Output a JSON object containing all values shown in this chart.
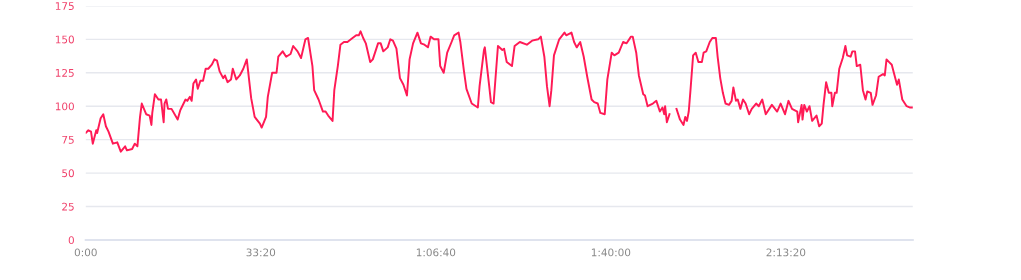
{
  "chart_data": {
    "type": "line",
    "color": "#ff1a55",
    "grid": "y",
    "marker": "none",
    "line_style": "solid",
    "xlim": [
      0,
      9450
    ],
    "ylim": [
      0,
      175
    ],
    "xticks": [
      {
        "value": 0,
        "label": "0:00"
      },
      {
        "value": 2000,
        "label": "33:20"
      },
      {
        "value": 4000,
        "label": "1:06:40"
      },
      {
        "value": 6000,
        "label": "1:40:00"
      },
      {
        "value": 8000,
        "label": "2:13:20"
      }
    ],
    "yticks": [
      0,
      25,
      50,
      75,
      100,
      125,
      150,
      175
    ],
    "x": [
      0,
      30,
      60,
      80,
      120,
      130,
      170,
      200,
      230,
      260,
      310,
      360,
      400,
      450,
      470,
      530,
      560,
      590,
      620,
      640,
      690,
      730,
      750,
      760,
      790,
      830,
      860,
      890,
      900,
      920,
      940,
      980,
      1050,
      1080,
      1140,
      1160,
      1190,
      1210,
      1230,
      1260,
      1280,
      1310,
      1340,
      1370,
      1400,
      1440,
      1470,
      1500,
      1530,
      1570,
      1590,
      1620,
      1660,
      1680,
      1720,
      1760,
      1800,
      1840,
      1890,
      1930,
      1990,
      2010,
      2060,
      2080,
      2130,
      2180,
      2200,
      2250,
      2290,
      2340,
      2370,
      2420,
      2460,
      2510,
      2540,
      2590,
      2610,
      2660,
      2710,
      2740,
      2770,
      2820,
      2840,
      2880,
      2910,
      2950,
      2990,
      3030,
      3090,
      3120,
      3140,
      3170,
      3200,
      3250,
      3280,
      3340,
      3370,
      3400,
      3450,
      3480,
      3510,
      3550,
      3590,
      3630,
      3670,
      3700,
      3740,
      3790,
      3830,
      3870,
      3910,
      3940,
      3980,
      4030,
      4050,
      4090,
      4130,
      4180,
      4210,
      4260,
      4280,
      4320,
      4350,
      4410,
      4480,
      4500,
      4550,
      4560,
      4610,
      4630,
      4660,
      4710,
      4760,
      4780,
      4810,
      4870,
      4900,
      4960,
      5040,
      5100,
      5170,
      5200,
      5240,
      5270,
      5300,
      5320,
      5350,
      5410,
      5470,
      5490,
      5550,
      5580,
      5610,
      5650,
      5690,
      5730,
      5780,
      5810,
      5850,
      5880,
      5930,
      5960,
      6010,
      6040,
      6090,
      6140,
      6180,
      6230,
      6250,
      6290,
      6320,
      6370,
      6390,
      6420,
      6480,
      6520,
      6560,
      6590,
      6610,
      6620,
      6640,
      6670,
      6720,
      6750,
      6790,
      6830,
      6850,
      6870,
      6890,
      6910,
      6940,
      6970,
      7000,
      7040,
      7060,
      7090,
      7130,
      7160,
      7200,
      7220,
      7250,
      7280,
      7310,
      7350,
      7380,
      7400,
      7430,
      7450,
      7480,
      7510,
      7540,
      7580,
      7610,
      7660,
      7690,
      7730,
      7770,
      7840,
      7900,
      7940,
      7990,
      8030,
      8070,
      8130,
      8140,
      8180,
      8190,
      8210,
      8240,
      8270,
      8300,
      8350,
      8380,
      8410,
      8430,
      8460,
      8490,
      8520,
      8530,
      8560,
      8580,
      8610,
      8650,
      8680,
      8700,
      8740,
      8760,
      8790,
      8810,
      8850,
      8880,
      8910,
      8930,
      8970,
      8990,
      9030,
      9060,
      9110,
      9130,
      9150,
      9180,
      9210,
      9230,
      9270,
      9290,
      9330,
      9380,
      9420,
      9450
    ],
    "values": [
      80,
      82,
      81,
      72,
      82,
      80,
      91,
      94,
      85,
      81,
      72,
      73,
      66,
      70,
      67,
      68,
      72,
      70,
      92,
      102,
      94,
      93,
      86,
      95,
      109,
      105,
      105,
      88,
      102,
      105,
      98,
      98,
      90,
      97,
      105,
      104,
      107,
      104,
      117,
      120,
      113,
      119,
      119,
      128,
      128,
      131,
      135,
      134,
      126,
      121,
      123,
      118,
      120,
      128,
      120,
      123,
      128,
      135,
      106,
      92,
      87,
      84,
      92,
      107,
      125,
      125,
      137,
      141,
      137,
      139,
      145,
      141,
      136,
      150,
      151,
      130,
      112,
      105,
      96,
      96,
      93,
      89,
      112,
      130,
      146,
      148,
      148,
      150,
      153,
      153,
      156,
      151,
      147,
      133,
      135,
      147,
      147,
      141,
      144,
      150,
      149,
      143,
      121,
      116,
      108,
      135,
      147,
      155,
      147,
      146,
      144,
      152,
      150,
      150,
      130,
      125,
      140,
      148,
      153,
      155,
      148,
      127,
      113,
      102,
      99,
      115,
      142,
      144,
      115,
      103,
      102,
      145,
      142,
      143,
      133,
      130,
      145,
      148,
      146,
      149,
      150,
      152,
      137,
      115,
      100,
      112,
      138,
      150,
      155,
      153,
      155,
      148,
      144,
      148,
      137,
      122,
      105,
      103,
      102,
      95,
      94,
      120,
      140,
      138,
      140,
      148,
      147,
      152,
      152,
      140,
      123,
      109,
      108,
      100,
      102,
      104,
      96,
      99,
      94,
      100,
      88,
      94,
      null,
      98,
      90,
      86,
      92,
      89,
      96,
      112,
      138,
      140,
      133,
      133,
      140,
      141,
      148,
      151,
      151,
      137,
      121,
      110,
      102,
      101,
      104,
      114,
      104,
      105,
      98,
      105,
      102,
      94,
      98,
      102,
      100,
      105,
      94,
      101,
      96,
      102,
      94,
      104,
      98,
      96,
      88,
      101,
      90,
      101,
      96,
      100,
      89,
      93,
      85,
      87,
      101,
      118,
      110,
      110,
      100,
      110,
      110,
      128,
      136,
      145,
      138,
      137,
      141,
      141,
      130,
      131,
      112,
      105,
      111,
      110,
      101,
      108,
      122,
      124,
      123,
      135,
      133,
      131,
      126,
      116,
      120,
      105,
      100,
      99,
      99
    ]
  }
}
